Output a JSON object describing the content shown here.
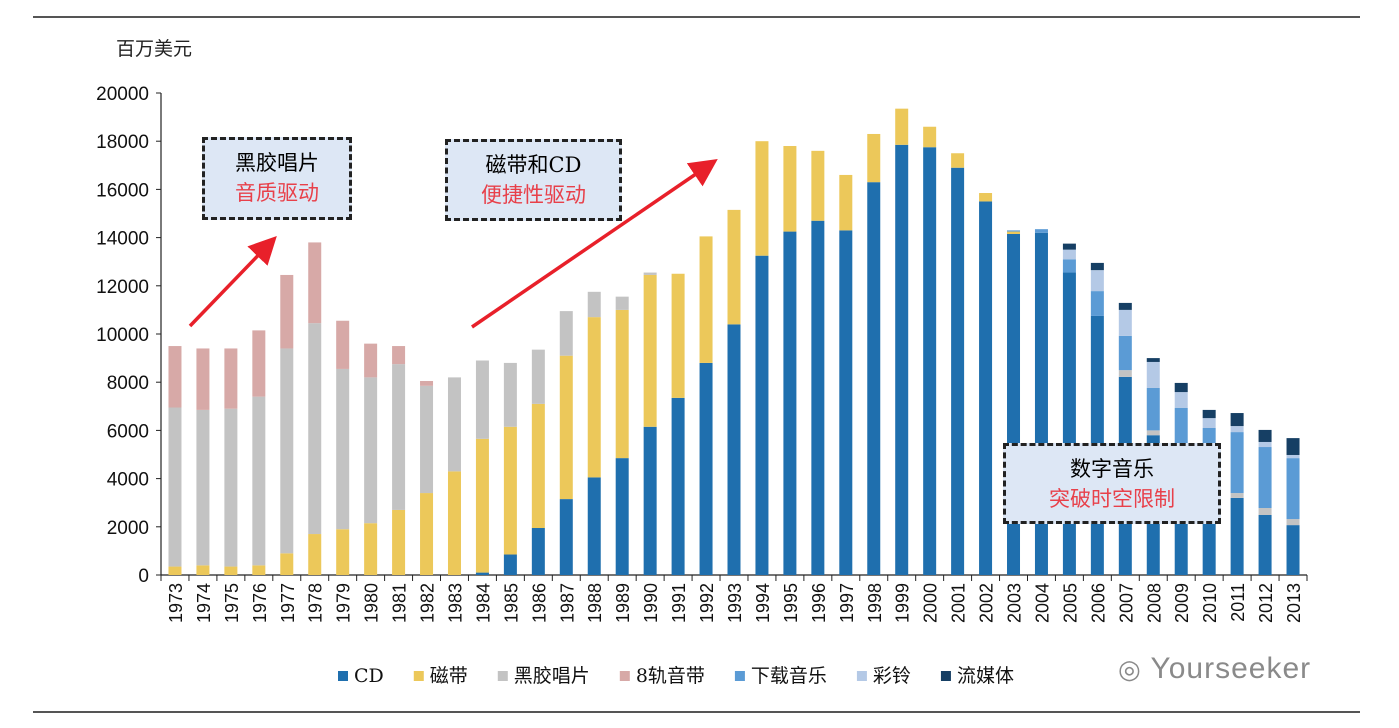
{
  "chart_data": {
    "type": "stacked-bar",
    "ylabel": "百万美元",
    "ylim": [
      0,
      20000
    ],
    "yticks": [
      0,
      2000,
      4000,
      6000,
      8000,
      10000,
      12000,
      14000,
      16000,
      18000,
      20000
    ],
    "grid": false,
    "legend_position": "bottom",
    "categories": [
      "1973",
      "1974",
      "1975",
      "1976",
      "1977",
      "1978",
      "1979",
      "1980",
      "1981",
      "1982",
      "1983",
      "1984",
      "1985",
      "1986",
      "1987",
      "1988",
      "1989",
      "1990",
      "1991",
      "1992",
      "1993",
      "1994",
      "1995",
      "1996",
      "1997",
      "1998",
      "1999",
      "2000",
      "2001",
      "2002",
      "2003",
      "2004",
      "2005",
      "2006",
      "2007",
      "2008",
      "2009",
      "2010",
      "2011",
      "2012",
      "2013"
    ],
    "series": [
      {
        "name": "CD",
        "color": "#1f6fae",
        "values": [
          0,
          0,
          0,
          0,
          0,
          0,
          0,
          0,
          0,
          0,
          0,
          100,
          850,
          1950,
          3150,
          4050,
          4850,
          6150,
          7350,
          8800,
          10400,
          13250,
          14250,
          14700,
          14300,
          16300,
          17850,
          17750,
          16900,
          15500,
          14150,
          14200,
          12550,
          10750,
          8220,
          5800,
          4300,
          3400,
          3200,
          2490,
          2070
        ]
      },
      {
        "name": "磁带",
        "color": "#ecc85a",
        "values": [
          350,
          400,
          350,
          400,
          900,
          1700,
          1900,
          2150,
          2700,
          3400,
          4300,
          5550,
          5300,
          5150,
          5950,
          6650,
          6150,
          6300,
          5150,
          5250,
          4750,
          4750,
          3550,
          2900,
          2300,
          2000,
          1500,
          850,
          600,
          350,
          100,
          0,
          0,
          0,
          0,
          0,
          0,
          0,
          0,
          0,
          0
        ]
      },
      {
        "name": "黑胶唱片",
        "color": "#c3c3c3",
        "values": [
          6600,
          6450,
          6550,
          7000,
          8500,
          8750,
          6650,
          6050,
          6050,
          4450,
          3900,
          3250,
          2650,
          2250,
          1850,
          1050,
          550,
          100,
          0,
          0,
          0,
          0,
          0,
          0,
          0,
          0,
          0,
          0,
          0,
          0,
          0,
          0,
          0,
          0,
          280,
          200,
          100,
          100,
          200,
          290,
          250
        ]
      },
      {
        "name": "8轨音带",
        "color": "#d7a9a7",
        "values": [
          2550,
          2550,
          2500,
          2750,
          3050,
          3350,
          2000,
          1400,
          750,
          200,
          0,
          0,
          0,
          0,
          0,
          0,
          0,
          0,
          0,
          0,
          0,
          0,
          0,
          0,
          0,
          0,
          0,
          0,
          0,
          0,
          0,
          0,
          0,
          0,
          0,
          0,
          0,
          0,
          0,
          0,
          0
        ]
      },
      {
        "name": "下载音乐",
        "color": "#5b9bd5",
        "values": [
          0,
          0,
          0,
          0,
          0,
          0,
          0,
          0,
          0,
          0,
          0,
          0,
          0,
          0,
          0,
          0,
          0,
          0,
          0,
          0,
          0,
          0,
          0,
          0,
          0,
          0,
          0,
          0,
          0,
          0,
          50,
          150,
          550,
          1030,
          1420,
          1760,
          2530,
          2600,
          2530,
          2530,
          2530
        ]
      },
      {
        "name": "彩铃",
        "color": "#b4c9e6",
        "values": [
          0,
          0,
          0,
          0,
          0,
          0,
          0,
          0,
          0,
          0,
          0,
          0,
          0,
          0,
          0,
          0,
          0,
          0,
          0,
          0,
          0,
          0,
          0,
          0,
          0,
          0,
          0,
          0,
          0,
          0,
          0,
          0,
          400,
          870,
          1080,
          1080,
          660,
          410,
          250,
          210,
          130
        ]
      },
      {
        "name": "流媒体",
        "color": "#163f64",
        "values": [
          0,
          0,
          0,
          0,
          0,
          0,
          0,
          0,
          0,
          0,
          0,
          0,
          0,
          0,
          0,
          0,
          0,
          0,
          0,
          0,
          0,
          0,
          0,
          0,
          0,
          0,
          0,
          0,
          0,
          0,
          0,
          0,
          250,
          300,
          290,
          160,
          380,
          340,
          540,
          500,
          700
        ]
      }
    ],
    "annotations": [
      {
        "line1": "黑胶唱片",
        "line2": "音质驱动"
      },
      {
        "line1": "磁带和CD",
        "line2": "便捷性驱动"
      },
      {
        "line1": "数字音乐",
        "line2": "突破时空限制"
      }
    ]
  },
  "watermark": "Yourseeker"
}
